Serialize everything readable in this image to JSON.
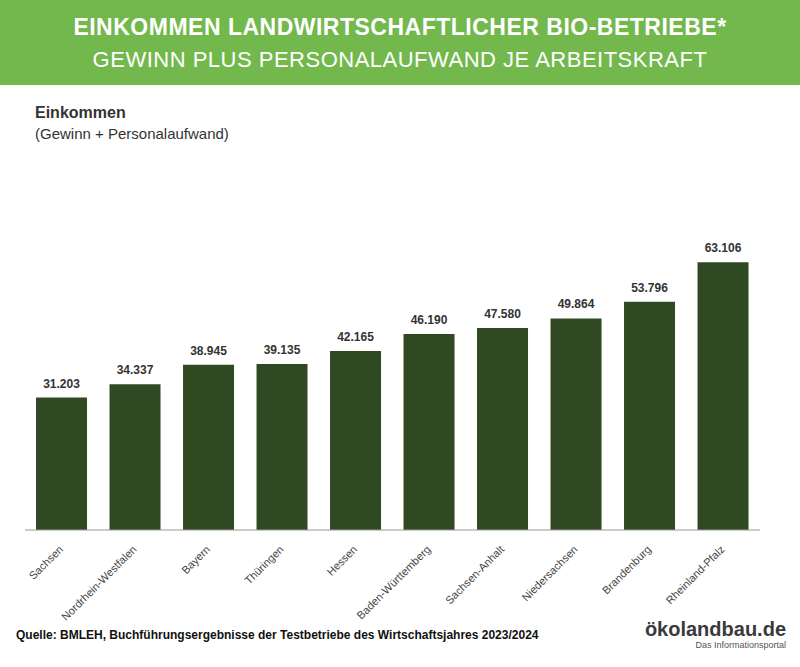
{
  "chart_data": {
    "type": "bar",
    "title": "EINKOMMEN LANDWIRTSCHAFTLICHER BIO-BETRIEBE*",
    "subtitle": "GEWINN PLUS PERSONALAUFWAND JE ARBEITSKRAFT",
    "y_label": "Einkommen",
    "annotations": [
      "(Gewinn + Personalaufwand)"
    ],
    "categories": [
      "Sachsen",
      "Nordrhein-Westfalen",
      "Bayern",
      "Thüringen",
      "Hessen",
      "Baden-Württemberg",
      "Sachsen-Anhalt",
      "Niedersachsen",
      "Brandenburg",
      "Rheinland-Pfalz"
    ],
    "values": [
      31203,
      34337,
      38945,
      39135,
      42165,
      46190,
      47580,
      49864,
      53796,
      63106
    ],
    "value_labels": [
      "31.203",
      "34.337",
      "38.945",
      "39.135",
      "42.165",
      "46.190",
      "47.580",
      "49.864",
      "53.796",
      "63.106"
    ],
    "data_labels": true,
    "color": "#2f4a22",
    "ylim": [
      0,
      70000
    ],
    "tick_labels": "x",
    "grid": false,
    "source": "Quelle: BMLEH, Buchführungsergebnisse der Testbetriebe des Wirtschaftsjahres 2023/2024",
    "logo": "ökolandbau.de",
    "logo_subtitle": "Das Informationsportal"
  }
}
